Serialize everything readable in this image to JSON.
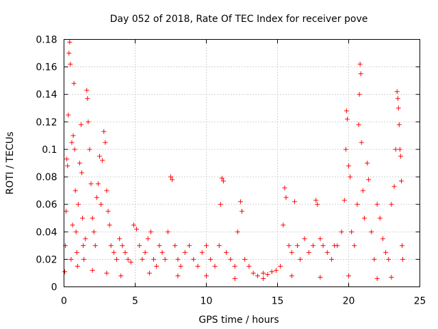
{
  "chart_data": {
    "type": "scatter",
    "title": "Day 052 of 2018, Rate Of TEC Index for receiver pove",
    "xlabel": "GPS time / hours",
    "ylabel": "ROTI / TECUs",
    "xlim": [
      0,
      25
    ],
    "ylim": [
      0,
      0.18
    ],
    "xticks": [
      0,
      5,
      10,
      15,
      20,
      25
    ],
    "xtick_labels": [
      "0",
      "5",
      "10",
      "15",
      "20",
      "25"
    ],
    "yticks": [
      0,
      0.02,
      0.04,
      0.06,
      0.08,
      0.1,
      0.12,
      0.14,
      0.16,
      0.18
    ],
    "ytick_labels": [
      "0",
      "0.02",
      "0.04",
      "0.06",
      "0.08",
      "0.1",
      "0.12",
      "0.14",
      "0.16",
      "0.18"
    ],
    "grid": true,
    "marker": "+",
    "marker_color": "#ff0000",
    "series": [
      {
        "points": [
          [
            0.05,
            0.011
          ],
          [
            0.1,
            0.03
          ],
          [
            0.15,
            0.055
          ],
          [
            0.2,
            0.093
          ],
          [
            0.25,
            0.088
          ],
          [
            0.3,
            0.125
          ],
          [
            0.35,
            0.17
          ],
          [
            0.4,
            0.178
          ],
          [
            0.45,
            0.162
          ],
          [
            0.5,
            0.02
          ],
          [
            0.55,
            0.105
          ],
          [
            0.6,
            0.045
          ],
          [
            0.65,
            0.11
          ],
          [
            0.7,
            0.148
          ],
          [
            0.75,
            0.1
          ],
          [
            0.8,
            0.07
          ],
          [
            0.85,
            0.04
          ],
          [
            0.9,
            0.025
          ],
          [
            0.95,
            0.015
          ],
          [
            1.0,
            0.06
          ],
          [
            1.1,
            0.09
          ],
          [
            1.2,
            0.118
          ],
          [
            1.25,
            0.083
          ],
          [
            1.3,
            0.05
          ],
          [
            1.35,
            0.03
          ],
          [
            1.4,
            0.02
          ],
          [
            1.5,
            0.035
          ],
          [
            1.6,
            0.143
          ],
          [
            1.65,
            0.137
          ],
          [
            1.7,
            0.12
          ],
          [
            1.8,
            0.1
          ],
          [
            1.9,
            0.075
          ],
          [
            2.0,
            0.05
          ],
          [
            2.1,
            0.04
          ],
          [
            2.2,
            0.03
          ],
          [
            2.3,
            0.065
          ],
          [
            2.4,
            0.075
          ],
          [
            2.5,
            0.095
          ],
          [
            2.6,
            0.06
          ],
          [
            2.7,
            0.092
          ],
          [
            2.8,
            0.113
          ],
          [
            2.9,
            0.105
          ],
          [
            3.0,
            0.07
          ],
          [
            3.1,
            0.055
          ],
          [
            3.2,
            0.045
          ],
          [
            3.3,
            0.03
          ],
          [
            3.5,
            0.025
          ],
          [
            3.7,
            0.02
          ],
          [
            3.9,
            0.035
          ],
          [
            4.1,
            0.03
          ],
          [
            4.3,
            0.025
          ],
          [
            4.5,
            0.02
          ],
          [
            4.7,
            0.018
          ],
          [
            4.9,
            0.045
          ],
          [
            5.1,
            0.042
          ],
          [
            5.3,
            0.03
          ],
          [
            5.5,
            0.02
          ],
          [
            5.7,
            0.025
          ],
          [
            5.9,
            0.035
          ],
          [
            6.1,
            0.04
          ],
          [
            6.3,
            0.02
          ],
          [
            6.5,
            0.015
          ],
          [
            6.7,
            0.03
          ],
          [
            6.9,
            0.025
          ],
          [
            7.1,
            0.02
          ],
          [
            7.3,
            0.04
          ],
          [
            7.5,
            0.08
          ],
          [
            7.6,
            0.078
          ],
          [
            7.8,
            0.03
          ],
          [
            8.0,
            0.02
          ],
          [
            8.2,
            0.015
          ],
          [
            8.5,
            0.025
          ],
          [
            8.8,
            0.03
          ],
          [
            9.1,
            0.02
          ],
          [
            9.4,
            0.015
          ],
          [
            9.7,
            0.025
          ],
          [
            10.0,
            0.03
          ],
          [
            10.3,
            0.02
          ],
          [
            10.6,
            0.015
          ],
          [
            10.9,
            0.03
          ],
          [
            11.0,
            0.06
          ],
          [
            11.1,
            0.079
          ],
          [
            11.2,
            0.077
          ],
          [
            11.4,
            0.025
          ],
          [
            11.7,
            0.02
          ],
          [
            12.0,
            0.015
          ],
          [
            12.2,
            0.04
          ],
          [
            12.4,
            0.062
          ],
          [
            12.5,
            0.055
          ],
          [
            12.7,
            0.02
          ],
          [
            13.0,
            0.015
          ],
          [
            13.3,
            0.01
          ],
          [
            13.6,
            0.008
          ],
          [
            14.0,
            0.01
          ],
          [
            14.3,
            0.009
          ],
          [
            14.6,
            0.011
          ],
          [
            14.9,
            0.012
          ],
          [
            15.2,
            0.015
          ],
          [
            15.4,
            0.045
          ],
          [
            15.5,
            0.072
          ],
          [
            15.6,
            0.065
          ],
          [
            15.8,
            0.03
          ],
          [
            16.0,
            0.025
          ],
          [
            16.2,
            0.062
          ],
          [
            16.4,
            0.03
          ],
          [
            16.6,
            0.02
          ],
          [
            16.9,
            0.035
          ],
          [
            17.2,
            0.025
          ],
          [
            17.5,
            0.03
          ],
          [
            17.7,
            0.063
          ],
          [
            17.8,
            0.06
          ],
          [
            18.0,
            0.035
          ],
          [
            18.2,
            0.03
          ],
          [
            18.5,
            0.025
          ],
          [
            18.8,
            0.02
          ],
          [
            19.0,
            0.03
          ],
          [
            19.2,
            0.03
          ],
          [
            19.5,
            0.04
          ],
          [
            19.7,
            0.063
          ],
          [
            19.8,
            0.1
          ],
          [
            19.85,
            0.128
          ],
          [
            19.9,
            0.122
          ],
          [
            20.0,
            0.088
          ],
          [
            20.1,
            0.08
          ],
          [
            20.2,
            0.04
          ],
          [
            20.4,
            0.03
          ],
          [
            20.6,
            0.06
          ],
          [
            20.7,
            0.118
          ],
          [
            20.75,
            0.14
          ],
          [
            20.8,
            0.162
          ],
          [
            20.85,
            0.155
          ],
          [
            20.9,
            0.105
          ],
          [
            21.0,
            0.07
          ],
          [
            21.1,
            0.05
          ],
          [
            21.3,
            0.09
          ],
          [
            21.4,
            0.078
          ],
          [
            21.6,
            0.04
          ],
          [
            21.8,
            0.02
          ],
          [
            22.0,
            0.06
          ],
          [
            22.2,
            0.05
          ],
          [
            22.4,
            0.035
          ],
          [
            22.6,
            0.025
          ],
          [
            22.8,
            0.02
          ],
          [
            23.0,
            0.06
          ],
          [
            23.2,
            0.073
          ],
          [
            23.3,
            0.1
          ],
          [
            23.4,
            0.142
          ],
          [
            23.45,
            0.137
          ],
          [
            23.5,
            0.13
          ],
          [
            23.55,
            0.118
          ],
          [
            23.6,
            0.1
          ],
          [
            23.65,
            0.095
          ],
          [
            23.7,
            0.077
          ],
          [
            23.75,
            0.03
          ],
          [
            23.8,
            0.02
          ],
          [
            2.0,
            0.012
          ],
          [
            3.0,
            0.01
          ],
          [
            4.0,
            0.008
          ],
          [
            6.0,
            0.01
          ],
          [
            8.0,
            0.008
          ],
          [
            10.0,
            0.008
          ],
          [
            12.0,
            0.006
          ],
          [
            14.0,
            0.006
          ],
          [
            16.0,
            0.008
          ],
          [
            18.0,
            0.007
          ],
          [
            20.0,
            0.008
          ],
          [
            22.0,
            0.006
          ],
          [
            23.0,
            0.007
          ]
        ]
      }
    ]
  }
}
